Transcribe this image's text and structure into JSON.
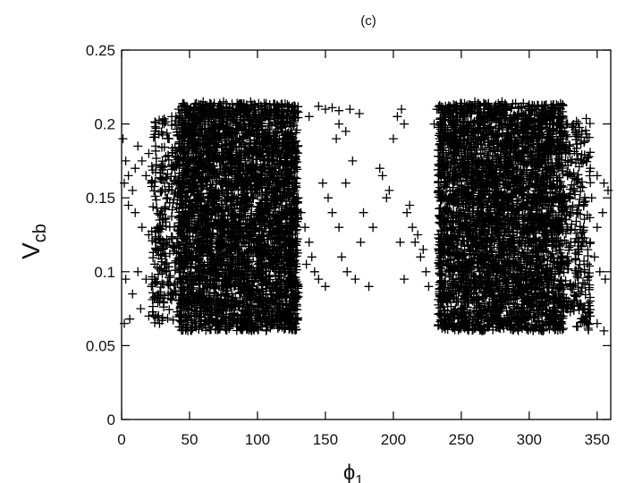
{
  "chart_data": {
    "type": "scatter",
    "title": "(c)",
    "xlabel": "ϕ",
    "xlabel_sub": "1",
    "ylabel": "V",
    "ylabel_sub": "cb",
    "xlim": [
      0,
      360
    ],
    "ylim": [
      0,
      0.25
    ],
    "xticks": [
      0,
      50,
      100,
      150,
      200,
      250,
      300,
      350
    ],
    "yticks": [
      0,
      0.05,
      0.1,
      0.15,
      0.2,
      0.25
    ],
    "ytick_labels": [
      "0",
      "0.05",
      "0.1",
      "0.15",
      "0.2",
      "0.25"
    ],
    "marker": "+",
    "marker_color": "#000000",
    "grid": false,
    "legend": "none",
    "points": [
      [
        40,
        0.205
      ],
      [
        42,
        0.21
      ],
      [
        48,
        0.212
      ],
      [
        55,
        0.214
      ],
      [
        60,
        0.215
      ],
      [
        65,
        0.214
      ],
      [
        75,
        0.215
      ],
      [
        85,
        0.214
      ],
      [
        95,
        0.215
      ],
      [
        105,
        0.214
      ],
      [
        112,
        0.213
      ],
      [
        118,
        0.212
      ],
      [
        125,
        0.211
      ],
      [
        130,
        0.208
      ],
      [
        138,
        0.205
      ],
      [
        145,
        0.212
      ],
      [
        150,
        0.21
      ],
      [
        155,
        0.211
      ],
      [
        160,
        0.209
      ],
      [
        168,
        0.21
      ],
      [
        175,
        0.207
      ],
      [
        30,
        0.2
      ],
      [
        35,
        0.19
      ],
      [
        25,
        0.185
      ],
      [
        20,
        0.18
      ],
      [
        15,
        0.175
      ],
      [
        10,
        0.17
      ],
      [
        5,
        0.165
      ],
      [
        2,
        0.16
      ],
      [
        8,
        0.155
      ],
      [
        3,
        0.175
      ],
      [
        1,
        0.19
      ],
      [
        12,
        0.185
      ],
      [
        18,
        0.165
      ],
      [
        22,
        0.16
      ],
      [
        5,
        0.145
      ],
      [
        10,
        0.14
      ],
      [
        15,
        0.13
      ],
      [
        20,
        0.125
      ],
      [
        25,
        0.12
      ],
      [
        30,
        0.115
      ],
      [
        12,
        0.1
      ],
      [
        18,
        0.095
      ],
      [
        22,
        0.09
      ],
      [
        8,
        0.085
      ],
      [
        3,
        0.095
      ],
      [
        14,
        0.075
      ],
      [
        6,
        0.068
      ],
      [
        2,
        0.065
      ],
      [
        20,
        0.07
      ],
      [
        28,
        0.08
      ],
      [
        33,
        0.1
      ],
      [
        120,
        0.18
      ],
      [
        125,
        0.17
      ],
      [
        128,
        0.16
      ],
      [
        130,
        0.15
      ],
      [
        132,
        0.14
      ],
      [
        135,
        0.13
      ],
      [
        138,
        0.12
      ],
      [
        140,
        0.11
      ],
      [
        142,
        0.1
      ],
      [
        145,
        0.095
      ],
      [
        150,
        0.09
      ],
      [
        125,
        0.1
      ],
      [
        130,
        0.09
      ],
      [
        128,
        0.085
      ],
      [
        136,
        0.105
      ],
      [
        148,
        0.16
      ],
      [
        152,
        0.15
      ],
      [
        155,
        0.14
      ],
      [
        158,
        0.19
      ],
      [
        160,
        0.2
      ],
      [
        165,
        0.195
      ],
      [
        170,
        0.175
      ],
      [
        165,
        0.16
      ],
      [
        160,
        0.13
      ],
      [
        162,
        0.11
      ],
      [
        166,
        0.1
      ],
      [
        172,
        0.095
      ],
      [
        176,
        0.12
      ],
      [
        178,
        0.14
      ],
      [
        182,
        0.09
      ],
      [
        185,
        0.13
      ],
      [
        190,
        0.17
      ],
      [
        192,
        0.165
      ],
      [
        195,
        0.15
      ],
      [
        197,
        0.155
      ],
      [
        200,
        0.19
      ],
      [
        203,
        0.205
      ],
      [
        206,
        0.21
      ],
      [
        208,
        0.2
      ],
      [
        210,
        0.14
      ],
      [
        212,
        0.145
      ],
      [
        214,
        0.13
      ],
      [
        216,
        0.12
      ],
      [
        218,
        0.125
      ],
      [
        220,
        0.11
      ],
      [
        222,
        0.115
      ],
      [
        224,
        0.1
      ],
      [
        205,
        0.12
      ],
      [
        208,
        0.095
      ],
      [
        226,
        0.09
      ],
      [
        230,
        0.2
      ],
      [
        232,
        0.21
      ],
      [
        234,
        0.19
      ],
      [
        236,
        0.175
      ],
      [
        238,
        0.16
      ],
      [
        240,
        0.14
      ],
      [
        250,
        0.214
      ],
      [
        260,
        0.215
      ],
      [
        270,
        0.214
      ],
      [
        280,
        0.215
      ],
      [
        290,
        0.214
      ],
      [
        300,
        0.213
      ],
      [
        305,
        0.21
      ],
      [
        310,
        0.205
      ],
      [
        315,
        0.2
      ],
      [
        320,
        0.195
      ],
      [
        325,
        0.19
      ],
      [
        330,
        0.185
      ],
      [
        335,
        0.18
      ],
      [
        340,
        0.175
      ],
      [
        345,
        0.17
      ],
      [
        350,
        0.165
      ],
      [
        355,
        0.16
      ],
      [
        358,
        0.155
      ],
      [
        330,
        0.15
      ],
      [
        335,
        0.14
      ],
      [
        340,
        0.13
      ],
      [
        345,
        0.12
      ],
      [
        348,
        0.11
      ],
      [
        352,
        0.1
      ],
      [
        356,
        0.095
      ],
      [
        330,
        0.09
      ],
      [
        335,
        0.08
      ],
      [
        340,
        0.075
      ],
      [
        345,
        0.07
      ],
      [
        350,
        0.065
      ],
      [
        355,
        0.06
      ],
      [
        325,
        0.07
      ],
      [
        320,
        0.065
      ],
      [
        338,
        0.1
      ],
      [
        342,
        0.12
      ],
      [
        350,
        0.13
      ],
      [
        354,
        0.14
      ],
      [
        346,
        0.15
      ]
    ],
    "dense_regions": [
      {
        "x": [
          42,
          130
        ],
        "y": [
          0.06,
          0.214
        ],
        "count": 3800
      },
      {
        "x": [
          233,
          325
        ],
        "y": [
          0.06,
          0.214
        ],
        "count": 3800
      },
      {
        "x": [
          22,
          42
        ],
        "y": [
          0.065,
          0.205
        ],
        "count": 260
      },
      {
        "x": [
          325,
          345
        ],
        "y": [
          0.06,
          0.205
        ],
        "count": 260
      }
    ]
  }
}
